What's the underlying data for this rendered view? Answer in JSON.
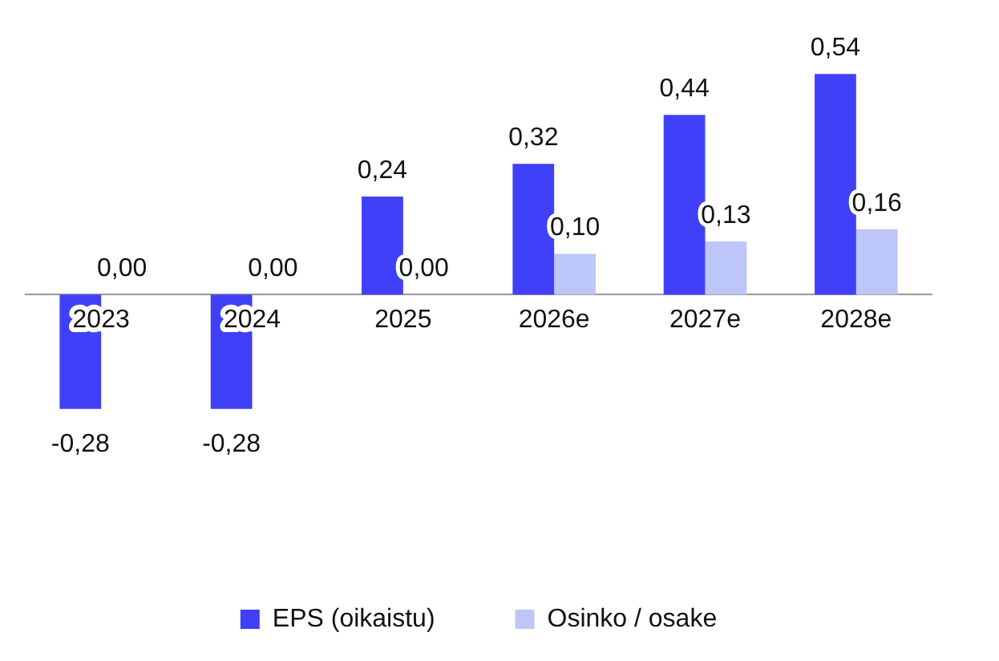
{
  "chart_data": {
    "type": "bar",
    "categories": [
      "2023",
      "2024",
      "2025",
      "2026e",
      "2027e",
      "2028e"
    ],
    "series": [
      {
        "name": "EPS (oikaistu)",
        "color": "#4040f8",
        "values": [
          -0.28,
          -0.28,
          0.24,
          0.32,
          0.44,
          0.54
        ],
        "value_labels": [
          "-0,28",
          "-0,28",
          "0,24",
          "0,32",
          "0,44",
          "0,54"
        ]
      },
      {
        "name": "Osinko / osake",
        "color": "#bcc6f8",
        "values": [
          0,
          0,
          0,
          0.1,
          0.13,
          0.16
        ],
        "value_labels": [
          "0,00",
          "0,00",
          "0,00",
          "0,10",
          "0,13",
          "0,16"
        ]
      }
    ],
    "legend": "bottom",
    "grid": false
  }
}
